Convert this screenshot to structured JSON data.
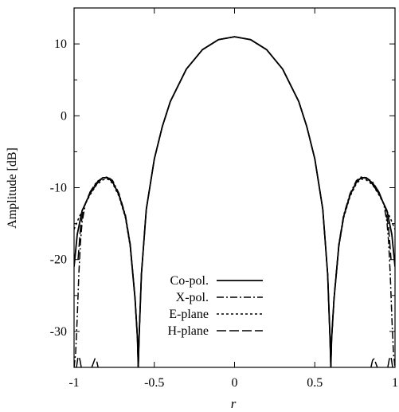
{
  "chart_data": {
    "type": "line",
    "title": "",
    "xlabel": "r",
    "ylabel": "Amplitude [dB]",
    "xlim": [
      -1,
      1
    ],
    "ylim": [
      -35,
      15
    ],
    "x_ticks": [
      -1,
      -0.5,
      0,
      0.5,
      1
    ],
    "x_tick_labels": [
      "-1",
      "-0.5",
      "0",
      "0.5",
      "1"
    ],
    "y_ticks": [
      -30,
      -20,
      -10,
      0,
      10
    ],
    "y_tick_labels": [
      "-30",
      "-20",
      "-10",
      "0",
      "10"
    ],
    "grid": false,
    "legend_position": "bottom-center",
    "series": [
      {
        "name": "Co-pol.",
        "style": "solid",
        "x": [
          -1.0,
          -0.98,
          -0.95,
          -0.9,
          -0.85,
          -0.82,
          -0.79,
          -0.76,
          -0.72,
          -0.68,
          -0.65,
          -0.62,
          -0.605,
          -0.6,
          -0.595,
          -0.58,
          -0.55,
          -0.5,
          -0.45,
          -0.4,
          -0.3,
          -0.2,
          -0.1,
          0.0,
          0.1,
          0.2,
          0.3,
          0.4,
          0.45,
          0.5,
          0.55,
          0.58,
          0.595,
          0.6,
          0.605,
          0.62,
          0.65,
          0.68,
          0.72,
          0.76,
          0.79,
          0.82,
          0.85,
          0.9,
          0.95,
          0.98,
          1.0
        ],
        "y": [
          -21,
          -16.5,
          -13.2,
          -10.8,
          -9.2,
          -8.6,
          -8.6,
          -9.2,
          -11.0,
          -14.0,
          -18.0,
          -25.5,
          -31.0,
          -35,
          -31.0,
          -22.0,
          -13.0,
          -6.0,
          -1.5,
          2.0,
          6.5,
          9.2,
          10.6,
          11.0,
          10.6,
          9.2,
          6.5,
          2.0,
          -1.5,
          -6.0,
          -13.0,
          -22.0,
          -31.0,
          -35,
          -31.0,
          -25.5,
          -18.0,
          -14.0,
          -11.0,
          -9.2,
          -8.6,
          -8.6,
          -9.2,
          -10.8,
          -13.2,
          -16.5,
          -21
        ]
      },
      {
        "name": "X-pol.",
        "style": "dash-dot",
        "x": [
          -1.0,
          -0.99,
          -0.98,
          -0.97,
          -0.96,
          -0.95,
          -0.93,
          -0.9,
          -0.86,
          -0.82,
          -0.79,
          -0.76,
          -0.72,
          -0.68,
          -0.65,
          -0.62,
          -0.605,
          -0.6,
          -0.595,
          -0.58,
          -0.55,
          -0.5,
          -0.45,
          -0.4,
          -0.3,
          -0.2,
          -0.1,
          0.0,
          0.1,
          0.2,
          0.3,
          0.4,
          0.45,
          0.5,
          0.55,
          0.58,
          0.595,
          0.6,
          0.605,
          0.62,
          0.65,
          0.68,
          0.72,
          0.76,
          0.79,
          0.82,
          0.86,
          0.9,
          0.93,
          0.95,
          0.96,
          0.97,
          0.98,
          0.99,
          1.0
        ],
        "y": [
          -35,
          -33.0,
          -28.0,
          -22.0,
          -17.5,
          -14.8,
          -12.3,
          -10.6,
          -9.2,
          -8.6,
          -8.5,
          -9.0,
          -10.8,
          -13.8,
          -17.8,
          -25.3,
          -31.0,
          -35,
          -31.0,
          -22.0,
          -13.0,
          -6.0,
          -1.5,
          2.0,
          6.5,
          9.2,
          10.6,
          11.0,
          10.6,
          9.2,
          6.5,
          2.0,
          -1.5,
          -6.0,
          -13.0,
          -22.0,
          -31.0,
          -35,
          -31.0,
          -25.3,
          -17.8,
          -13.8,
          -10.8,
          -9.0,
          -8.5,
          -8.6,
          -9.2,
          -10.6,
          -12.3,
          -14.8,
          -17.5,
          -22.0,
          -28.0,
          -33.0,
          -35
        ]
      },
      {
        "name": "E-plane",
        "style": "dotted",
        "x": [
          -1.0,
          -0.97,
          -0.93,
          -0.9,
          -0.86,
          -0.82,
          -0.79,
          -0.76,
          -0.72,
          -0.68,
          -0.65,
          -0.62,
          -0.605,
          -0.6,
          -0.595,
          -0.58,
          -0.55,
          -0.5,
          -0.45,
          -0.4,
          -0.3,
          -0.2,
          -0.1,
          0.0,
          0.1,
          0.2,
          0.3,
          0.4,
          0.45,
          0.5,
          0.55,
          0.58,
          0.595,
          0.6,
          0.605,
          0.62,
          0.65,
          0.68,
          0.72,
          0.76,
          0.79,
          0.82,
          0.86,
          0.9,
          0.93,
          0.97,
          1.0
        ],
        "y": [
          -15.8,
          -14.2,
          -12.3,
          -11.0,
          -9.6,
          -8.9,
          -8.8,
          -9.4,
          -11.2,
          -14.2,
          -18.2,
          -25.6,
          -31.0,
          -35,
          -31.0,
          -22.0,
          -13.0,
          -6.0,
          -1.5,
          2.0,
          6.5,
          9.2,
          10.6,
          11.0,
          10.6,
          9.2,
          6.5,
          2.0,
          -1.5,
          -6.0,
          -13.0,
          -22.0,
          -31.0,
          -35,
          -31.0,
          -25.6,
          -18.2,
          -14.2,
          -11.2,
          -9.4,
          -8.8,
          -8.9,
          -9.6,
          -11.0,
          -12.3,
          -14.2,
          -15.8
        ]
      },
      {
        "name": "H-plane",
        "style": "long-dash",
        "x": [
          -0.975,
          -0.96,
          -0.94,
          -0.9,
          -0.86,
          -0.82,
          -0.79,
          -0.76,
          -0.72,
          -0.68,
          -0.65,
          -0.62,
          -0.605,
          -0.6,
          -0.595,
          -0.58,
          -0.55,
          -0.5,
          -0.45,
          -0.4,
          -0.3,
          -0.2,
          -0.1,
          0.0,
          0.1,
          0.2,
          0.3,
          0.4,
          0.45,
          0.5,
          0.55,
          0.58,
          0.595,
          0.6,
          0.605,
          0.62,
          0.65,
          0.68,
          0.72,
          0.76,
          0.79,
          0.82,
          0.86,
          0.9,
          0.94,
          0.96,
          0.975
        ],
        "y": [
          -20.0,
          -15.5,
          -12.8,
          -10.6,
          -9.3,
          -8.7,
          -8.6,
          -9.2,
          -11.0,
          -14.0,
          -18.0,
          -25.5,
          -31.0,
          -35,
          -31.0,
          -22.0,
          -13.0,
          -6.0,
          -1.5,
          2.0,
          6.5,
          9.2,
          10.6,
          11.0,
          10.6,
          9.2,
          6.5,
          2.0,
          -1.5,
          -6.0,
          -13.0,
          -22.0,
          -31.0,
          -35,
          -31.0,
          -25.5,
          -18.0,
          -14.0,
          -11.0,
          -9.2,
          -8.6,
          -8.7,
          -9.3,
          -10.6,
          -12.8,
          -15.5,
          -20.0
        ]
      },
      {
        "name": "",
        "style": "long-dash",
        "x": [
          -0.985,
          -0.975,
          -0.965,
          -0.955
        ],
        "y": [
          -35,
          -33.5,
          -33.8,
          -35
        ]
      },
      {
        "name": "",
        "style": "long-dash",
        "x": [
          -0.89,
          -0.87,
          -0.86,
          -0.85
        ],
        "y": [
          -35,
          -33.8,
          -34.0,
          -35
        ]
      },
      {
        "name": "",
        "style": "long-dash",
        "x": [
          0.85,
          0.86,
          0.87,
          0.89
        ],
        "y": [
          -35,
          -34.0,
          -33.8,
          -35
        ]
      },
      {
        "name": "",
        "style": "long-dash",
        "x": [
          0.955,
          0.965,
          0.975,
          0.985
        ],
        "y": [
          -35,
          -33.8,
          -33.5,
          -35
        ]
      }
    ]
  }
}
